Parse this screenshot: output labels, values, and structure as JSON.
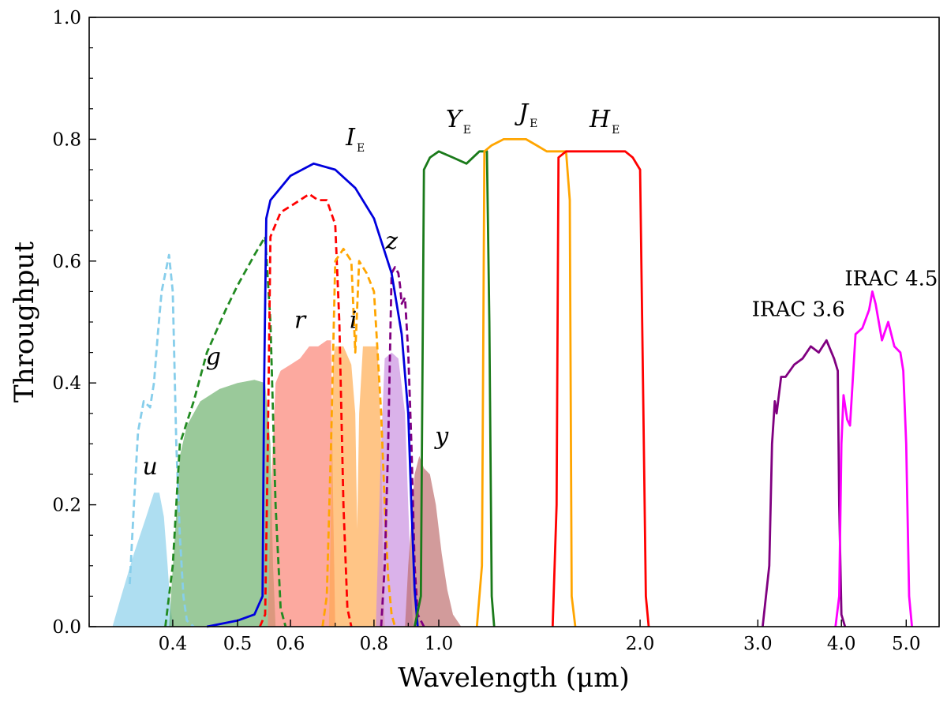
{
  "chart_data": {
    "type": "line",
    "title": "",
    "xlabel": "Wavelength (μm)",
    "ylabel": "Throughput",
    "xscale": "log",
    "xlim": [
      0.3,
      5.6
    ],
    "ylim": [
      0.0,
      1.0
    ],
    "x_ticks": [
      0.4,
      0.5,
      0.6,
      0.8,
      1.0,
      2.0,
      3.0,
      4.0,
      5.0
    ],
    "x_tick_labels": [
      "0.4",
      "0.5",
      "0.6",
      "0.8",
      "1.0",
      "2.0",
      "3.0",
      "4.0",
      "5.0"
    ],
    "y_ticks": [
      0.0,
      0.2,
      0.4,
      0.6,
      0.8,
      1.0
    ],
    "y_tick_labels": [
      "0.0",
      "0.2",
      "0.4",
      "0.6",
      "0.8",
      "1.0"
    ],
    "series": [
      {
        "name": "u (filled)",
        "style": "filled",
        "color": "#87ceeb",
        "x": [
          0.325,
          0.335,
          0.35,
          0.365,
          0.375,
          0.382,
          0.388,
          0.393,
          0.397,
          0.401
        ],
        "y": [
          0.0,
          0.05,
          0.12,
          0.18,
          0.22,
          0.22,
          0.18,
          0.1,
          0.03,
          0.0
        ]
      },
      {
        "name": "g (filled)",
        "style": "filled",
        "color": "#6aaf6a",
        "x": [
          0.395,
          0.403,
          0.41,
          0.42,
          0.44,
          0.47,
          0.5,
          0.53,
          0.55,
          0.56,
          0.565,
          0.57
        ],
        "y": [
          0.0,
          0.15,
          0.28,
          0.33,
          0.37,
          0.39,
          0.4,
          0.405,
          0.4,
          0.3,
          0.1,
          0.0
        ]
      },
      {
        "name": "r (filled)",
        "style": "filled",
        "color": "#fa8072",
        "x": [
          0.555,
          0.56,
          0.57,
          0.58,
          0.6,
          0.62,
          0.64,
          0.66,
          0.68,
          0.69,
          0.695,
          0.7
        ],
        "y": [
          0.0,
          0.2,
          0.4,
          0.42,
          0.43,
          0.44,
          0.46,
          0.46,
          0.47,
          0.47,
          0.2,
          0.0
        ]
      },
      {
        "name": "i (filled)",
        "style": "filled",
        "color": "#ffa94d",
        "x": [
          0.685,
          0.69,
          0.695,
          0.7,
          0.72,
          0.74,
          0.75,
          0.755,
          0.76,
          0.77,
          0.79,
          0.81,
          0.82,
          0.825,
          0.83
        ],
        "y": [
          0.0,
          0.2,
          0.44,
          0.46,
          0.46,
          0.43,
          0.35,
          0.16,
          0.35,
          0.46,
          0.46,
          0.46,
          0.3,
          0.1,
          0.0
        ]
      },
      {
        "name": "z (filled)",
        "style": "filled",
        "color": "#c88ee0",
        "x": [
          0.805,
          0.81,
          0.82,
          0.83,
          0.85,
          0.87,
          0.89,
          0.9,
          0.91,
          0.915
        ],
        "y": [
          0.0,
          0.1,
          0.3,
          0.44,
          0.45,
          0.44,
          0.35,
          0.2,
          0.05,
          0.0
        ]
      },
      {
        "name": "y (filled)",
        "style": "filled",
        "color": "#bc6c6c",
        "x": [
          0.89,
          0.9,
          0.92,
          0.935,
          0.95,
          0.97,
          0.99,
          1.01,
          1.03,
          1.05,
          1.08
        ],
        "y": [
          0.0,
          0.1,
          0.25,
          0.28,
          0.26,
          0.25,
          0.2,
          0.12,
          0.06,
          0.02,
          0.0
        ]
      },
      {
        "name": "u (dashed)",
        "style": "dashed",
        "color": "#87ceeb",
        "x": [
          0.345,
          0.35,
          0.355,
          0.362,
          0.37,
          0.375,
          0.38,
          0.385,
          0.39,
          0.395,
          0.4,
          0.402,
          0.405,
          0.41,
          0.415,
          0.42,
          0.43
        ],
        "y": [
          0.07,
          0.2,
          0.32,
          0.37,
          0.36,
          0.4,
          0.48,
          0.55,
          0.58,
          0.61,
          0.55,
          0.45,
          0.3,
          0.15,
          0.05,
          0.01,
          0.0
        ]
      },
      {
        "name": "g (dashed)",
        "style": "dashed",
        "color": "#228b22",
        "x": [
          0.39,
          0.4,
          0.41,
          0.43,
          0.45,
          0.48,
          0.5,
          0.53,
          0.55,
          0.56,
          0.57,
          0.58,
          0.59
        ],
        "y": [
          0.0,
          0.1,
          0.3,
          0.37,
          0.45,
          0.52,
          0.56,
          0.61,
          0.64,
          0.5,
          0.2,
          0.03,
          0.0
        ]
      },
      {
        "name": "r (dashed)",
        "style": "dashed",
        "color": "#ff0000",
        "x": [
          0.54,
          0.55,
          0.555,
          0.56,
          0.58,
          0.6,
          0.62,
          0.64,
          0.66,
          0.68,
          0.7,
          0.71,
          0.72,
          0.73,
          0.74
        ],
        "y": [
          0.0,
          0.02,
          0.3,
          0.64,
          0.68,
          0.69,
          0.7,
          0.71,
          0.7,
          0.7,
          0.66,
          0.5,
          0.2,
          0.03,
          0.0
        ]
      },
      {
        "name": "i (dashed)",
        "style": "dashed",
        "color": "#ffa500",
        "x": [
          0.67,
          0.68,
          0.69,
          0.7,
          0.71,
          0.72,
          0.74,
          0.75,
          0.76,
          0.78,
          0.8,
          0.81,
          0.82,
          0.83,
          0.84,
          0.85,
          0.86
        ],
        "y": [
          0.0,
          0.05,
          0.3,
          0.6,
          0.61,
          0.62,
          0.6,
          0.45,
          0.6,
          0.58,
          0.55,
          0.45,
          0.35,
          0.2,
          0.08,
          0.02,
          0.0
        ]
      },
      {
        "name": "z (dashed)",
        "style": "dashed",
        "color": "#800080",
        "x": [
          0.82,
          0.83,
          0.84,
          0.85,
          0.86,
          0.87,
          0.875,
          0.88,
          0.89,
          0.9,
          0.91,
          0.92,
          0.93,
          0.95
        ],
        "y": [
          0.0,
          0.1,
          0.3,
          0.58,
          0.59,
          0.58,
          0.56,
          0.53,
          0.54,
          0.45,
          0.3,
          0.1,
          0.02,
          0.0
        ]
      },
      {
        "name": "I_E",
        "style": "solid",
        "color": "#0000dd",
        "x": [
          0.45,
          0.5,
          0.53,
          0.545,
          0.548,
          0.552,
          0.56,
          0.6,
          0.65,
          0.7,
          0.75,
          0.8,
          0.85,
          0.88,
          0.9,
          0.91,
          0.92,
          0.93
        ],
        "y": [
          0.0,
          0.01,
          0.02,
          0.05,
          0.4,
          0.67,
          0.7,
          0.74,
          0.76,
          0.75,
          0.72,
          0.67,
          0.58,
          0.48,
          0.35,
          0.2,
          0.06,
          0.0
        ]
      },
      {
        "name": "Y_E",
        "style": "solid",
        "color": "#1a7a1a",
        "x": [
          0.92,
          0.94,
          0.95,
          0.97,
          1.0,
          1.05,
          1.1,
          1.15,
          1.18,
          1.19,
          1.2,
          1.21
        ],
        "y": [
          0.0,
          0.05,
          0.75,
          0.77,
          0.78,
          0.77,
          0.76,
          0.78,
          0.78,
          0.5,
          0.05,
          0.0
        ]
      },
      {
        "name": "J_E",
        "style": "solid",
        "color": "#ffa500",
        "x": [
          1.14,
          1.16,
          1.17,
          1.2,
          1.25,
          1.3,
          1.35,
          1.4,
          1.45,
          1.5,
          1.55,
          1.57,
          1.58,
          1.6
        ],
        "y": [
          0.0,
          0.1,
          0.78,
          0.79,
          0.8,
          0.8,
          0.8,
          0.79,
          0.78,
          0.78,
          0.78,
          0.7,
          0.05,
          0.0
        ]
      },
      {
        "name": "H_E",
        "style": "solid",
        "color": "#ff0000",
        "x": [
          1.48,
          1.5,
          1.51,
          1.55,
          1.6,
          1.7,
          1.8,
          1.9,
          1.95,
          2.0,
          2.02,
          2.04,
          2.06
        ],
        "y": [
          0.0,
          0.2,
          0.77,
          0.78,
          0.78,
          0.78,
          0.78,
          0.78,
          0.77,
          0.75,
          0.4,
          0.05,
          0.0
        ]
      },
      {
        "name": "IRAC 3.6",
        "style": "solid",
        "color": "#800080",
        "x": [
          3.05,
          3.12,
          3.15,
          3.18,
          3.2,
          3.25,
          3.3,
          3.4,
          3.5,
          3.6,
          3.7,
          3.8,
          3.9,
          3.95,
          3.97,
          4.0,
          4.05
        ],
        "y": [
          0.0,
          0.1,
          0.3,
          0.37,
          0.35,
          0.41,
          0.41,
          0.43,
          0.44,
          0.46,
          0.45,
          0.47,
          0.44,
          0.42,
          0.2,
          0.02,
          0.0
        ]
      },
      {
        "name": "IRAC 4.5",
        "style": "solid",
        "color": "#ff00ff",
        "x": [
          3.92,
          3.97,
          4.0,
          4.03,
          4.08,
          4.12,
          4.2,
          4.3,
          4.4,
          4.45,
          4.5,
          4.6,
          4.7,
          4.8,
          4.9,
          4.95,
          5.0,
          5.05,
          5.1
        ],
        "y": [
          0.0,
          0.05,
          0.3,
          0.38,
          0.34,
          0.33,
          0.48,
          0.49,
          0.52,
          0.55,
          0.53,
          0.47,
          0.5,
          0.46,
          0.45,
          0.42,
          0.3,
          0.05,
          0.0
        ]
      }
    ],
    "annotations": [
      {
        "text": "u",
        "sub": "",
        "x": 0.37,
        "y": 0.25
      },
      {
        "text": "g",
        "sub": "",
        "x": 0.46,
        "y": 0.43
      },
      {
        "text": "r",
        "sub": "",
        "x": 0.62,
        "y": 0.49
      },
      {
        "text": "i",
        "sub": "",
        "x": 0.745,
        "y": 0.49
      },
      {
        "text": "z",
        "sub": "",
        "x": 0.85,
        "y": 0.62
      },
      {
        "text": "y",
        "sub": "",
        "x": 1.01,
        "y": 0.3
      },
      {
        "text": "I",
        "sub": "E",
        "x": 0.75,
        "y": 0.79
      },
      {
        "text": "Y",
        "sub": "E",
        "x": 1.07,
        "y": 0.82
      },
      {
        "text": "J",
        "sub": "E",
        "x": 1.36,
        "y": 0.83
      },
      {
        "text": "H",
        "sub": "E",
        "x": 1.77,
        "y": 0.82
      },
      {
        "text": "IRAC 3.6",
        "sub": "",
        "x": 3.45,
        "y": 0.51
      },
      {
        "text": "IRAC 4.5",
        "sub": "",
        "x": 4.75,
        "y": 0.56
      }
    ]
  }
}
